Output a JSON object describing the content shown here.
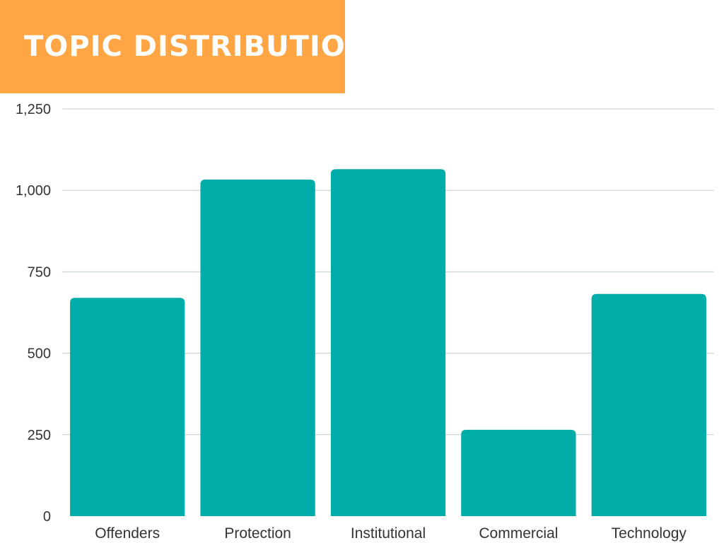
{
  "colors": {
    "banner": "#FFA544",
    "bar": "#00ADA8",
    "grid": "#bfcfd0"
  },
  "chart_data": {
    "type": "bar",
    "title": "TOPIC DISTRIBUTION",
    "xlabel": "",
    "ylabel": "",
    "categories": [
      "Offenders",
      "Protection",
      "Institutional",
      "Commercial",
      "Technology"
    ],
    "values": [
      670,
      1033,
      1065,
      265,
      682
    ],
    "ylim": [
      0,
      1250
    ],
    "yticks": [
      0,
      250,
      500,
      750,
      1000,
      1250
    ],
    "ytick_labels": [
      "0",
      "250",
      "500",
      "750",
      "1,000",
      "1,250"
    ],
    "grid": true,
    "legend": "none"
  }
}
